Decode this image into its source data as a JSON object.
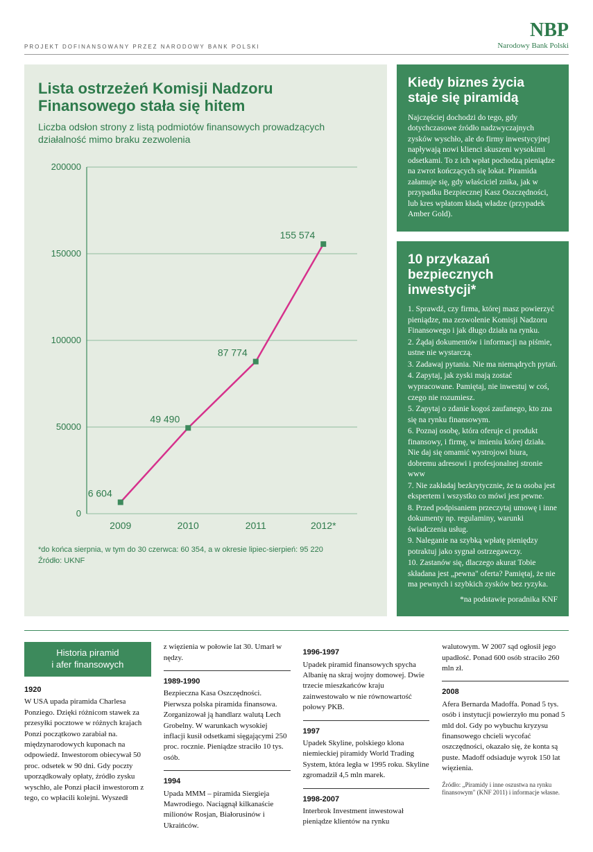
{
  "header": {
    "left": "PROJEKT DOFINANSOWANY PRZEZ NARODOWY BANK POLSKI",
    "logo": "NBP",
    "logo_sub": "Narodowy Bank Polski"
  },
  "chart": {
    "title": "Lista ostrzeżeń Komisji Nadzoru Finansowego stała się hitem",
    "subtitle": "Liczba odsłon strony z listą podmiotów finansowych prowadzących działalność mimo braku zezwolenia",
    "type": "line",
    "x_labels": [
      "2009",
      "2010",
      "2011",
      "2012*"
    ],
    "values": [
      6604,
      49490,
      87774,
      155574
    ],
    "value_labels": [
      "6 604",
      "49 490",
      "87 774",
      "155 574"
    ],
    "ylim": [
      0,
      200000
    ],
    "ytick_step": 50000,
    "y_labels": [
      "0",
      "50000",
      "100000",
      "150000",
      "200000"
    ],
    "line_color": "#d6318c",
    "marker_color": "#3d8a5c",
    "grid_color": "#3d8a5c",
    "axis_color": "#3d8a5c",
    "label_color": "#2d7a4b",
    "background": "#e5ece2",
    "line_width": 2.5,
    "marker_size": 8,
    "note_line1": "*do końca sierpnia, w tym do 30 czerwca: 60 354, a w okresie lipiec-sierpień: 95 220",
    "note_line2": "Źródło: UKNF"
  },
  "box1": {
    "title": "Kiedy biznes życia staje się piramidą",
    "body": "Najczęściej dochodzi do tego, gdy dotychczasowe źródło nadzwyczajnych zysków wyschło, ale do firmy inwestycyjnej napływają nowi klienci skuszeni wysokimi odsetkami. To z ich wpłat pochodzą pieniądze na zwrot kończących się lokat. Piramida załamuje się, gdy właściciel znika, jak w przypadku Bezpiecznej Kasz Oszczędności, lub kres wpłatom kładą władze (przypadek Amber Gold)."
  },
  "box2": {
    "title": "10 przykazań bezpiecznych inwestycji*",
    "items": [
      "1. Sprawdź, czy firma, której masz powierzyć pieniądze, ma zezwolenie Komisji Nadzoru Finansowego i jak długo działa na rynku.",
      "2. Żądaj dokumentów i informacji na piśmie, ustne nie wystarczą.",
      "3. Zadawaj pytania. Nie ma niemądrych pytań.",
      "4. Zapytaj, jak zyski mają zostać wypracowane. Pamiętaj, nie inwestuj w coś, czego nie rozumiesz.",
      "5. Zapytaj o zdanie kogoś zaufanego, kto zna się na rynku finansowym.",
      "6. Poznaj osobę, która oferuje ci produkt finansowy, i firmę, w imieniu której działa. Nie daj się omamić wystrojowi biura, dobremu adresowi i profesjonalnej stronie www",
      "7. Nie zakładaj bezkrytycznie, że ta osoba jest ekspertem i wszystko co mówi jest pewne.",
      "8. Przed podpisaniem przeczytaj umowę i inne dokumenty np. regulaminy, warunki świadczenia usług.",
      "9. Naleganie na szybką wpłatę pieniędzy potraktuj jako sygnał ostrzegawczy.",
      "10. Zastanów się, dlaczego akurat Tobie składana jest „pewna\" oferta? Pamiętaj, że nie ma pewnych i szybkich zysków bez ryzyka."
    ],
    "footnote": "*na podstawie poradnika KNF"
  },
  "history": {
    "header_line1": "Historia piramid",
    "header_line2": "i afer finansowych",
    "col1": [
      {
        "year": "1920",
        "text": "W USA upada piramida Charlesa Ponziego. Dzięki różnicom stawek za przesyłki pocztowe w różnych krajach Ponzi początkowo zarabiał na. międzynarodowych kuponach na odpowiedź. Inwestorom obiecywał 50 proc. odsetek w 90 dni. Gdy poczty uporządkowały opłaty, źródło zysku wyschło, ale Ponzi płacił inwestorom z tego, co wpłacili kolejni. Wyszedł"
      }
    ],
    "col2_pre": "z więzienia w połowie lat 30. Umarł w nędzy.",
    "col2": [
      {
        "year": "1989-1990",
        "text": "Bezpieczna Kasa Oszczędności. Pierwsza polska piramida finansowa. Zorganizował ją handlarz walutą Lech Grobelny. W warunkach wysokiej inflacji kusił odsetkami sięgającymi 250 proc. rocznie. Pieniądze straciło 10 tys. osób."
      },
      {
        "year": "1994",
        "text": "Upada MMM – piramida Siergieja Mawrodiego. Naciągnął kilkanaście milionów Rosjan, Białorusinów i Ukraińców."
      }
    ],
    "col3": [
      {
        "year": "1996-1997",
        "text": "Upadek piramid finansowych spycha Albanię na skraj wojny domowej. Dwie trzecie mieszkańców kraju zainwestowało w nie równowartość połowy PKB."
      },
      {
        "year": "1997",
        "text": "Upadek Skyline, polskiego klona niemieckiej piramidy World Trading System, która legła w 1995 roku. Skyline zgromadził 4,5 mln marek."
      },
      {
        "year": "1998-2007",
        "text": "Interbrok Investment inwestował pieniądze klientów na rynku"
      }
    ],
    "col4_pre": "walutowym. W 2007 sąd ogłosił jego upadłość. Ponad 600 osób straciło 260 mln zł.",
    "col4": [
      {
        "year": "2008",
        "text": "Afera Bernarda Madoffa. Ponad 5 tys. osób i instytucji powierzyło mu ponad 5 mld dol. Gdy po wybuchu kryzysu finansowego chcieli wycofać oszczędności, okazało się, że konta są puste. Madoff odsiaduje wyrok 150 lat więzienia."
      }
    ],
    "source": "Źródło: „Piramidy i inne oszustwa na rynku finansowym\" (KNF 2011) i informacje własne."
  }
}
